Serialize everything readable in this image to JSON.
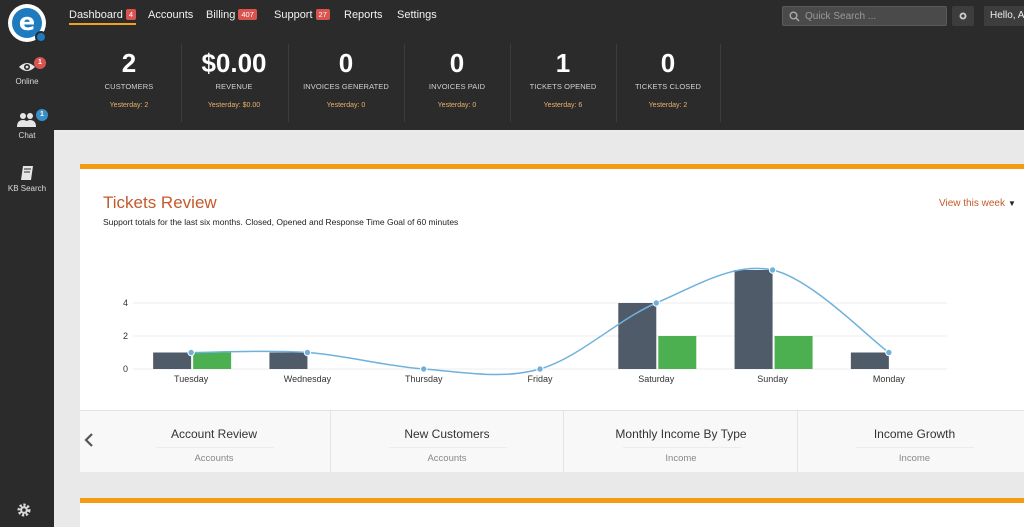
{
  "nav": {
    "items": [
      {
        "label": "Dashboard",
        "badge": "4",
        "active": true
      },
      {
        "label": "Accounts",
        "badge": ""
      },
      {
        "label": "Billing",
        "badge": "407"
      },
      {
        "label": "Support",
        "badge": "27"
      },
      {
        "label": "Reports",
        "badge": ""
      },
      {
        "label": "Settings",
        "badge": ""
      }
    ],
    "search_placeholder": "Quick Search ...",
    "hello": "Hello, A"
  },
  "sidebar": {
    "items": [
      {
        "label": "Online",
        "icon": "eye-icon",
        "badge": "1",
        "badge_color": "#d9534f"
      },
      {
        "label": "Chat",
        "icon": "users-icon",
        "badge": "1",
        "badge_color": "#3a8fc8"
      },
      {
        "label": "KB Search",
        "icon": "book-icon",
        "badge": ""
      }
    ],
    "logo_letter": "e"
  },
  "stats": [
    {
      "value": "2",
      "caption": "CUSTOMERS",
      "yesterday": "Yesterday: 2"
    },
    {
      "value": "$0.00",
      "caption": "REVENUE",
      "yesterday": "Yesterday: $0.00"
    },
    {
      "value": "0",
      "caption": "INVOICES GENERATED",
      "yesterday": "Yesterday: 0"
    },
    {
      "value": "0",
      "caption": "INVOICES PAID",
      "yesterday": "Yesterday: 0"
    },
    {
      "value": "1",
      "caption": "TICKETS OPENED",
      "yesterday": "Yesterday: 6"
    },
    {
      "value": "0",
      "caption": "TICKETS CLOSED",
      "yesterday": "Yesterday: 2"
    }
  ],
  "card": {
    "title": "Tickets Review",
    "subtitle": "Support totals for the last six months. Closed, Opened and Response Time Goal of 60 minutes",
    "view_selector": "View this week"
  },
  "chart_data": {
    "type": "bar",
    "categories": [
      "Tuesday",
      "Wednesday",
      "Thursday",
      "Friday",
      "Saturday",
      "Sunday",
      "Monday"
    ],
    "series": [
      {
        "color": "#4f5b69",
        "values": [
          1,
          1,
          0,
          0,
          4,
          6,
          1
        ]
      },
      {
        "color": "#4cb050",
        "values": [
          1,
          0,
          0,
          0,
          2,
          2,
          0
        ]
      },
      {
        "color": "#6fb1dc",
        "type": "line",
        "values": [
          1,
          1,
          0,
          0,
          4,
          6,
          1
        ]
      }
    ],
    "yticks": [
      0,
      2,
      4
    ],
    "ylim": [
      0,
      6.5
    ],
    "grid": true
  },
  "tabs": [
    {
      "title": "Account Review",
      "subtitle": "Accounts"
    },
    {
      "title": "New Customers",
      "subtitle": "Accounts"
    },
    {
      "title": "Monthly Income By Type",
      "subtitle": "Income"
    },
    {
      "title": "Income Growth",
      "subtitle": "Income"
    }
  ],
  "colors": {
    "accent": "#f39c12",
    "title": "#c35a2b",
    "dark": "#2b2b2b",
    "bar_dark": "#4f5b69",
    "bar_green": "#4cb050",
    "line": "#6fb1dc"
  }
}
